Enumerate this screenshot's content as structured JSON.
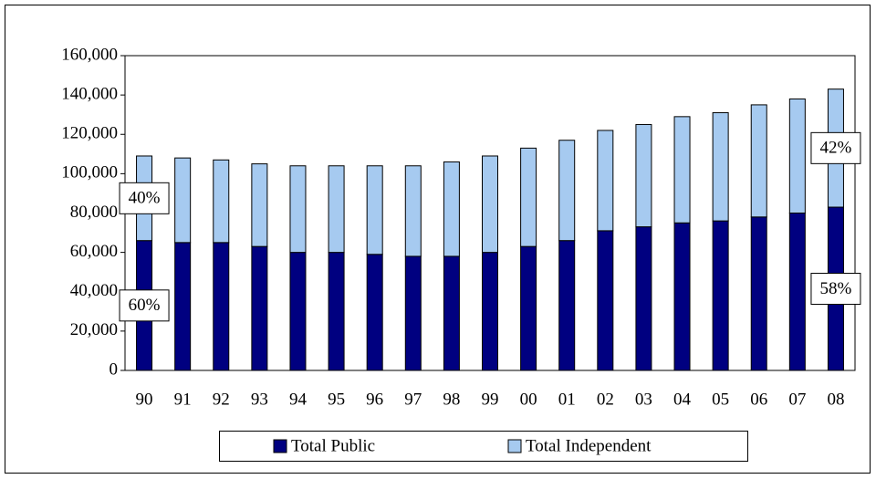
{
  "chart_data": {
    "type": "stacked_bar",
    "categories": [
      "90",
      "91",
      "92",
      "93",
      "94",
      "95",
      "96",
      "97",
      "98",
      "99",
      "00",
      "01",
      "02",
      "03",
      "04",
      "05",
      "06",
      "07",
      "08"
    ],
    "series": [
      {
        "name": "Total Public",
        "color": "#000080",
        "values": [
          66000,
          65000,
          65000,
          63000,
          60000,
          60000,
          59000,
          58000,
          58000,
          60000,
          63000,
          66000,
          71000,
          73000,
          75000,
          76000,
          78000,
          80000,
          83000
        ]
      },
      {
        "name": "Total Independent",
        "color": "#a6caf0",
        "values": [
          43000,
          43000,
          42000,
          42000,
          44000,
          44000,
          45000,
          46000,
          48000,
          49000,
          50000,
          51000,
          51000,
          52000,
          54000,
          55000,
          57000,
          58000,
          60000
        ]
      }
    ],
    "annotations": [
      "40%",
      "60%",
      "42%",
      "58%"
    ],
    "ylim": [
      0,
      160000
    ],
    "yticks": [
      0,
      {
        "value": 20000,
        "label": "20,000"
      },
      {
        "value": 40000,
        "label": "40,000"
      },
      {
        "value": 60000,
        "label": "60,000"
      },
      {
        "value": 80000,
        "label": "80,000"
      },
      {
        "value": 100000,
        "label": "100,000"
      },
      {
        "value": 120000,
        "label": "120,000"
      },
      {
        "value": 140000,
        "label": "140,000"
      },
      {
        "value": 160000,
        "label": "160,000"
      }
    ],
    "grid": false,
    "legend": "bottom"
  }
}
